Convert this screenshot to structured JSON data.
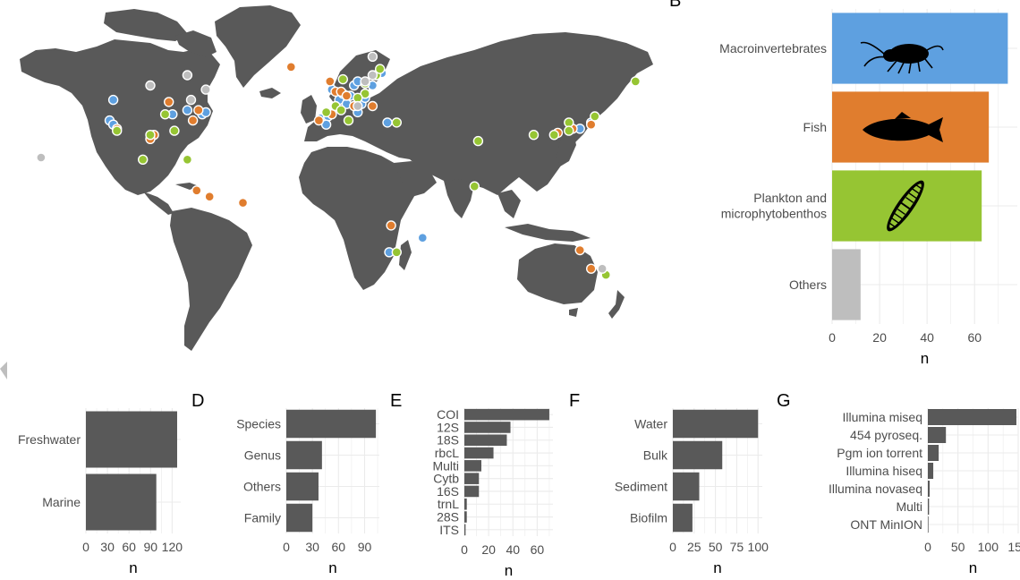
{
  "colors": {
    "land": "#595959",
    "bar": "#595959",
    "grid": "#ebebeb",
    "axis_text": "#4d4d4d",
    "macro": "#5ea0e0",
    "fish": "#e07d2e",
    "plankton": "#96c533",
    "others": "#bebebe",
    "point_stroke": "#ffffff"
  },
  "panel_labels": {
    "B": "B",
    "D": "D",
    "E": "E",
    "F": "F",
    "G": "G"
  },
  "icons": [
    "amphipod-icon",
    "fish-icon",
    "diatom-icon"
  ],
  "chart_data": [
    {
      "id": "A",
      "type": "scatter",
      "title": "",
      "xlabel": "",
      "ylabel": "",
      "groups": [
        {
          "name": "macroinvertebrates",
          "color": "#5ea0e0",
          "points": [
            [
              -122,
              38
            ],
            [
              -120,
              36
            ],
            [
              -88,
              41
            ],
            [
              -80,
              43
            ],
            [
              -72,
              41
            ],
            [
              -70,
              42
            ],
            [
              -120,
              48
            ],
            [
              -2,
              53
            ],
            [
              -8,
              39
            ],
            [
              -4,
              40
            ],
            [
              2,
              48
            ],
            [
              4,
              51
            ],
            [
              6,
              46
            ],
            [
              8,
              50
            ],
            [
              10,
              55
            ],
            [
              12,
              57
            ],
            [
              14,
              46
            ],
            [
              16,
              49
            ],
            [
              20,
              55
            ],
            [
              22,
              60
            ],
            [
              25,
              61
            ],
            [
              -5,
              36
            ],
            [
              28,
              37
            ],
            [
              12,
              42
            ],
            [
              138,
              37
            ],
            [
              132,
              34
            ],
            [
              29,
              -26
            ],
            [
              47,
              -19
            ]
          ]
        },
        {
          "name": "fish",
          "color": "#e07d2e",
          "points": [
            [
              -118,
              34
            ],
            [
              -98,
              31
            ],
            [
              -100,
              29
            ],
            [
              -90,
              47
            ],
            [
              -74,
              43
            ],
            [
              -77,
              38
            ],
            [
              -24,
              64
            ],
            [
              -75,
              4
            ],
            [
              -68,
              1
            ],
            [
              -50,
              -2
            ],
            [
              0,
              52
            ],
            [
              3,
              52
            ],
            [
              6,
              50
            ],
            [
              -9,
              38
            ],
            [
              -2,
              41
            ],
            [
              10,
              45
            ],
            [
              16,
              51
            ],
            [
              20,
              45
            ],
            [
              120,
              32
            ],
            [
              128,
              34
            ],
            [
              138,
              36
            ],
            [
              30,
              -13
            ],
            [
              132,
              -25
            ],
            [
              138,
              -34
            ],
            [
              -3,
              57
            ]
          ]
        },
        {
          "name": "plankton",
          "color": "#96c533",
          "points": [
            [
              -118,
              33
            ],
            [
              -100,
              31
            ],
            [
              -87,
              33
            ],
            [
              -104,
              19
            ],
            [
              -80,
              19
            ],
            [
              -92,
              41
            ],
            [
              4,
              58
            ],
            [
              16,
              51
            ],
            [
              22,
              60
            ],
            [
              24,
              63
            ],
            [
              12,
              49
            ],
            [
              0,
              45
            ],
            [
              3,
              43
            ],
            [
              7,
              38
            ],
            [
              33,
              37
            ],
            [
              77,
              28
            ],
            [
              107,
              31
            ],
            [
              118,
              31
            ],
            [
              126,
              37
            ],
            [
              140,
              40
            ],
            [
              162,
              57
            ],
            [
              33,
              -26
            ],
            [
              75,
              6
            ],
            [
              146,
              -37
            ],
            [
              126,
              33
            ],
            [
              16,
              56
            ],
            [
              -5,
              42
            ]
          ]
        },
        {
          "name": "others",
          "color": "#bebebe",
          "points": [
            [
              -159,
              20
            ],
            [
              -80,
              60
            ],
            [
              -78,
              48
            ],
            [
              -100,
              55
            ],
            [
              -70,
              53
            ],
            [
              16,
              57
            ],
            [
              20,
              69
            ],
            [
              144,
              -34
            ],
            [
              20,
              60
            ],
            [
              12,
              45
            ]
          ]
        }
      ]
    },
    {
      "id": "B",
      "type": "bar",
      "orientation": "horizontal",
      "title": "",
      "categories": [
        "Macroinvertebrates",
        "Fish",
        "Plankton and\nmicrophytobenthos",
        "Others"
      ],
      "values": [
        74,
        66,
        63,
        12
      ],
      "xlabel": "n",
      "ylabel": "",
      "xlim": [
        0,
        78
      ],
      "xticks": [
        0,
        20,
        40,
        60
      ],
      "grid": true
    },
    {
      "id": "C",
      "type": "bar",
      "orientation": "horizontal",
      "title": "",
      "categories": [
        "Freshwater",
        "Marine"
      ],
      "values": [
        127,
        98
      ],
      "xlabel": "n",
      "ylabel": "",
      "xlim": [
        0,
        132
      ],
      "xticks": [
        0,
        30,
        60,
        90,
        120
      ],
      "grid": true
    },
    {
      "id": "D",
      "type": "bar",
      "orientation": "horizontal",
      "title": "",
      "categories": [
        "Species",
        "Genus",
        "Others",
        "Family"
      ],
      "values": [
        103,
        41,
        37,
        30
      ],
      "xlabel": "n",
      "ylabel": "",
      "xlim": [
        0,
        107
      ],
      "xticks": [
        0,
        30,
        60,
        90
      ],
      "grid": true
    },
    {
      "id": "E",
      "type": "bar",
      "orientation": "horizontal",
      "title": "",
      "categories": [
        "COI",
        "12S",
        "18S",
        "rbcL",
        "Multi",
        "Cytb",
        "16S",
        "trnL",
        "28S",
        "ITS"
      ],
      "values": [
        70,
        38,
        35,
        24,
        14,
        12,
        12,
        2,
        2,
        1
      ],
      "xlabel": "n",
      "ylabel": "",
      "xlim": [
        0,
        73
      ],
      "xticks": [
        0,
        20,
        40,
        60
      ],
      "grid": true
    },
    {
      "id": "F",
      "type": "bar",
      "orientation": "horizontal",
      "title": "",
      "categories": [
        "Water",
        "Bulk",
        "Sediment",
        "Biofilm"
      ],
      "values": [
        100,
        58,
        31,
        23
      ],
      "xlabel": "n",
      "ylabel": "",
      "xlim": [
        0,
        105
      ],
      "xticks": [
        0,
        25,
        50,
        75,
        100
      ],
      "grid": true
    },
    {
      "id": "G",
      "type": "bar",
      "orientation": "horizontal",
      "title": "",
      "categories": [
        "Illumina miseq",
        "454 pyroseq.",
        "Pgm ion torrent",
        "Illumina hiseq",
        "Illumina novaseq",
        "Multi",
        "ONT MinION"
      ],
      "values": [
        147,
        30,
        18,
        9,
        3,
        2,
        1
      ],
      "xlabel": "n",
      "ylabel": "",
      "xlim": [
        0,
        150
      ],
      "xticks": [
        0,
        50,
        100,
        150
      ],
      "grid": true
    }
  ]
}
